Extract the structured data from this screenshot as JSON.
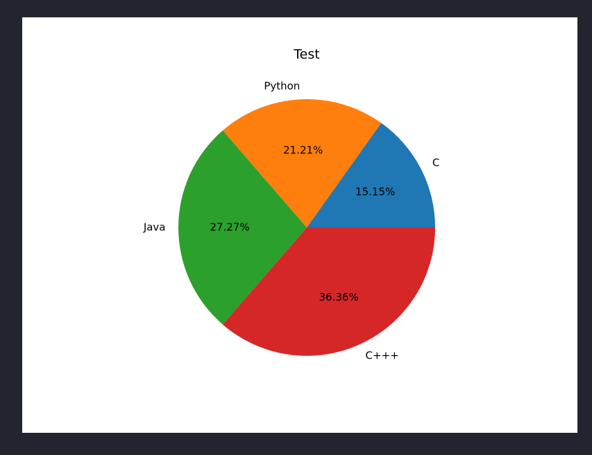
{
  "chart_data": {
    "type": "pie",
    "title": "Test",
    "categories": [
      "C",
      "Python",
      "Java",
      "C+++"
    ],
    "values": [
      15.15,
      21.21,
      27.27,
      36.36
    ],
    "value_labels": [
      "15.15%",
      "21.21%",
      "27.27%",
      "36.36%"
    ],
    "colors": [
      "#1f77b4",
      "#ff7f0e",
      "#2ca02c",
      "#d62728"
    ]
  }
}
